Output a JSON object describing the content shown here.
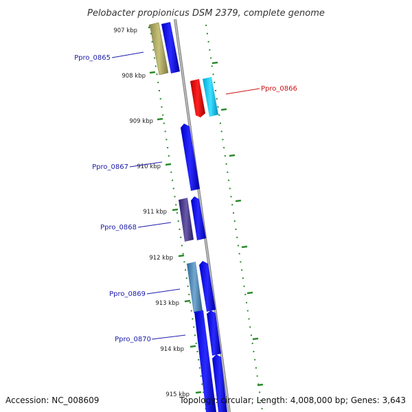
{
  "title": "Pelobacter propionicus DSM 2379, complete genome",
  "accession": "Accession: NC_008609",
  "stats": "Topology: circular; Length: 4,008,000 bp; Genes: 3,643",
  "colors": {
    "backbone": "#8a8a8a",
    "tick": "#2a8a2a",
    "label_blue": "#1a1aaa",
    "label_red": "#cc1111"
  },
  "ticks": [
    {
      "label": "907 kbp"
    },
    {
      "label": "908 kbp"
    },
    {
      "label": "909 kbp"
    },
    {
      "label": "910 kbp"
    },
    {
      "label": "911 kbp"
    },
    {
      "label": "912 kbp"
    },
    {
      "label": "913 kbp"
    },
    {
      "label": "914 kbp"
    },
    {
      "label": "915 kbp"
    }
  ],
  "gene_labels": [
    {
      "text": "Ppro_0865",
      "color": "#1a1aaa"
    },
    {
      "text": "Ppro_0866",
      "color": "#cc1111"
    },
    {
      "text": "Ppro_0867",
      "color": "#1a1aaa"
    },
    {
      "text": "Ppro_0868",
      "color": "#1a1aaa"
    },
    {
      "text": "Ppro_0869",
      "color": "#1a1aaa"
    },
    {
      "text": "Ppro_0870",
      "color": "#1a1aaa"
    }
  ]
}
